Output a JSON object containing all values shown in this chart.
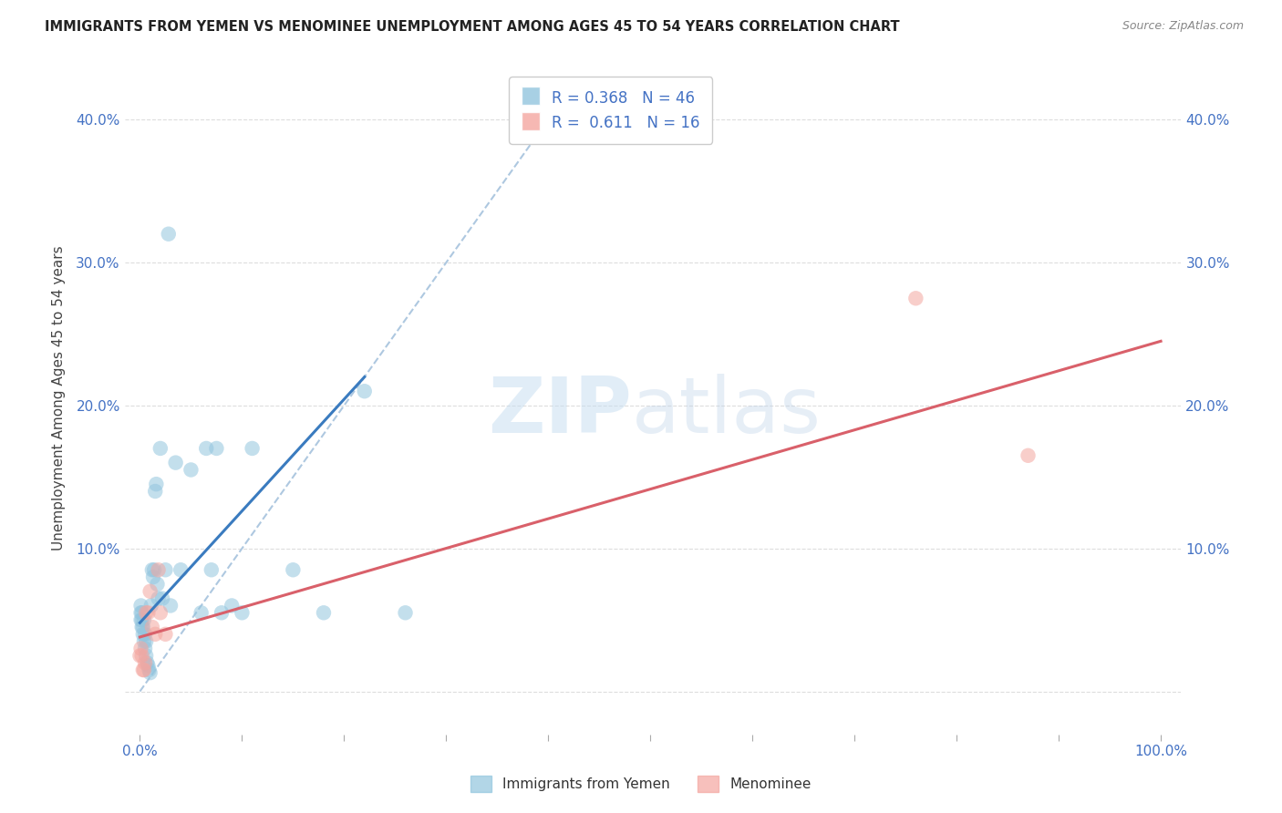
{
  "title": "IMMIGRANTS FROM YEMEN VS MENOMINEE UNEMPLOYMENT AMONG AGES 45 TO 54 YEARS CORRELATION CHART",
  "source": "Source: ZipAtlas.com",
  "ylabel": "Unemployment Among Ages 45 to 54 years",
  "legend1_label": "R = 0.368   N = 46",
  "legend2_label": "R =  0.611   N = 16",
  "legend_footer1": "Immigrants from Yemen",
  "legend_footer2": "Menominee",
  "blue_color": "#92c5de",
  "pink_color": "#f4a6a0",
  "blue_line_color": "#3a7bbf",
  "pink_line_color": "#d9606a",
  "dashed_line_color": "#aec8e0",
  "watermark_zip": "ZIP",
  "watermark_atlas": "atlas",
  "blue_scatter_x": [
    0.001,
    0.001,
    0.001,
    0.002,
    0.002,
    0.002,
    0.003,
    0.003,
    0.004,
    0.004,
    0.005,
    0.005,
    0.006,
    0.006,
    0.007,
    0.008,
    0.009,
    0.01,
    0.011,
    0.012,
    0.013,
    0.014,
    0.015,
    0.016,
    0.017,
    0.018,
    0.02,
    0.022,
    0.025,
    0.028,
    0.03,
    0.035,
    0.04,
    0.05,
    0.06,
    0.065,
    0.07,
    0.075,
    0.08,
    0.09,
    0.1,
    0.11,
    0.15,
    0.18,
    0.22,
    0.26
  ],
  "blue_scatter_y": [
    0.05,
    0.055,
    0.06,
    0.045,
    0.05,
    0.055,
    0.04,
    0.045,
    0.035,
    0.05,
    0.03,
    0.04,
    0.025,
    0.035,
    0.02,
    0.018,
    0.015,
    0.013,
    0.06,
    0.085,
    0.08,
    0.085,
    0.14,
    0.145,
    0.075,
    0.065,
    0.17,
    0.065,
    0.085,
    0.32,
    0.06,
    0.16,
    0.085,
    0.155,
    0.055,
    0.17,
    0.085,
    0.17,
    0.055,
    0.06,
    0.055,
    0.17,
    0.085,
    0.055,
    0.21,
    0.055
  ],
  "pink_scatter_x": [
    0.0,
    0.001,
    0.002,
    0.003,
    0.004,
    0.005,
    0.006,
    0.008,
    0.01,
    0.012,
    0.015,
    0.018,
    0.02,
    0.025,
    0.76,
    0.87
  ],
  "pink_scatter_y": [
    0.025,
    0.03,
    0.025,
    0.015,
    0.015,
    0.02,
    0.055,
    0.055,
    0.07,
    0.045,
    0.04,
    0.085,
    0.055,
    0.04,
    0.275,
    0.165
  ],
  "blue_line_x": [
    0.0,
    0.22
  ],
  "blue_line_y": [
    0.048,
    0.22
  ],
  "pink_line_x": [
    0.0,
    1.0
  ],
  "pink_line_y": [
    0.038,
    0.245
  ],
  "diag_line_x": [
    0.0,
    0.42
  ],
  "diag_line_y": [
    0.0,
    0.42
  ],
  "xlim": [
    -0.015,
    1.02
  ],
  "ylim": [
    -0.03,
    0.44
  ],
  "xtick_positions": [
    0.0,
    0.1,
    0.2,
    0.3,
    0.4,
    0.5,
    0.6,
    0.7,
    0.8,
    0.9,
    1.0
  ],
  "ytick_positions": [
    0.0,
    0.1,
    0.2,
    0.3,
    0.4
  ],
  "ytick_labels": [
    "",
    "10.0%",
    "20.0%",
    "30.0%",
    "40.0%"
  ],
  "right_ytick_labels": [
    "",
    "10.0%",
    "20.0%",
    "30.0%",
    "40.0%"
  ]
}
